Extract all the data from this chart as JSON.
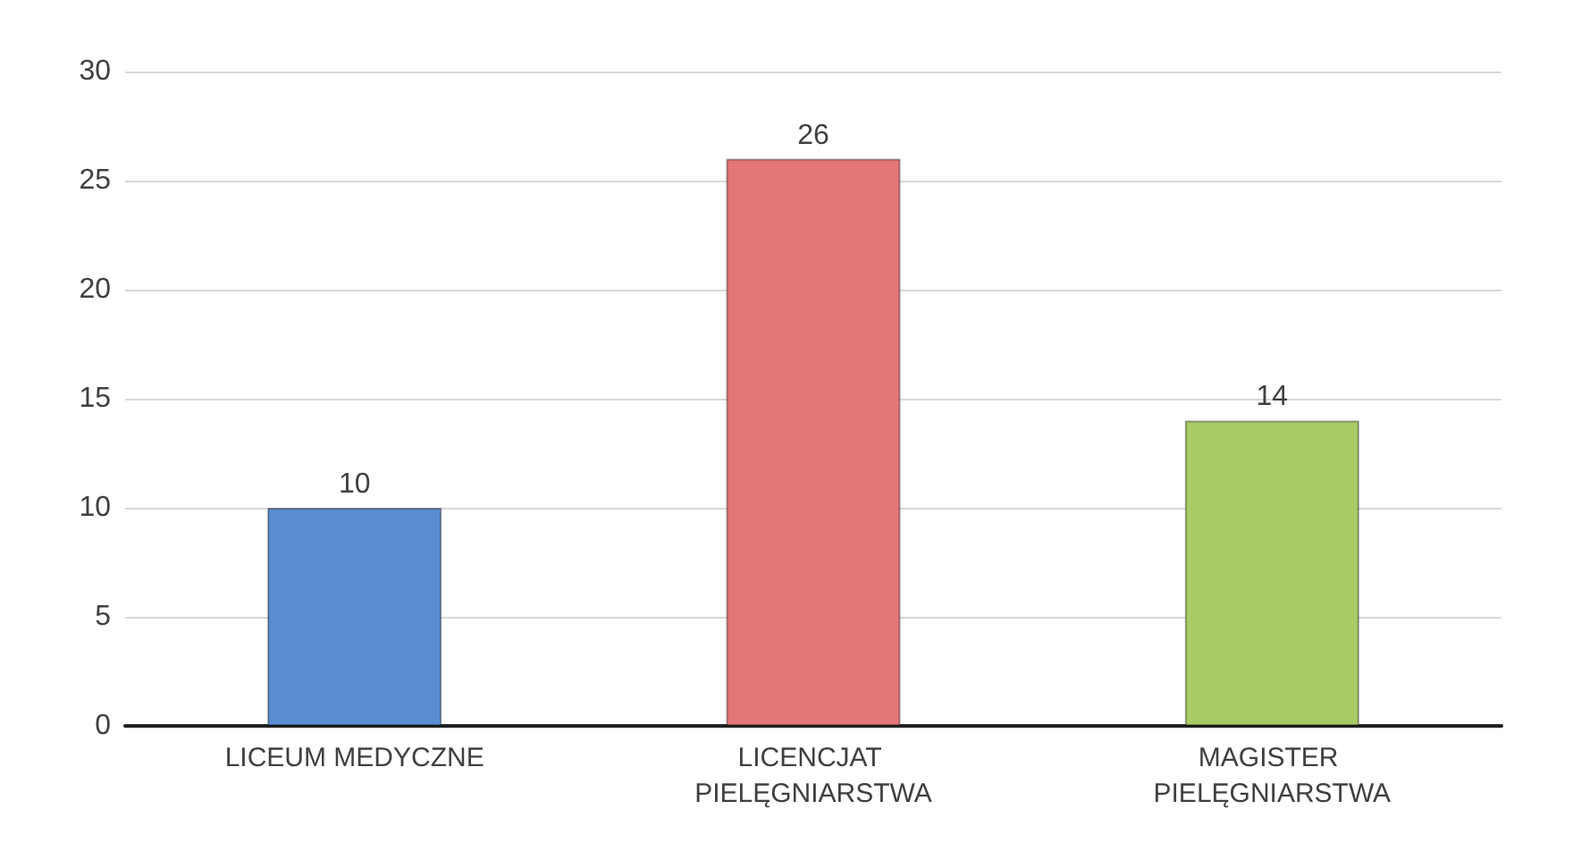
{
  "chart_data": {
    "type": "bar",
    "categories": [
      "LICEUM MEDYCZNE",
      "LICENCJAT PIELĘGNIARSTWA",
      "MAGISTER PIELĘGNIARSTWA"
    ],
    "values": [
      10,
      26,
      14
    ],
    "colors": [
      "#5b8ed1",
      "#e57676",
      "#a7cc66"
    ],
    "ylim": [
      0,
      30
    ],
    "yticks": [
      0,
      5,
      10,
      15,
      20,
      25,
      30
    ],
    "grid": "y",
    "data_labels": true
  }
}
